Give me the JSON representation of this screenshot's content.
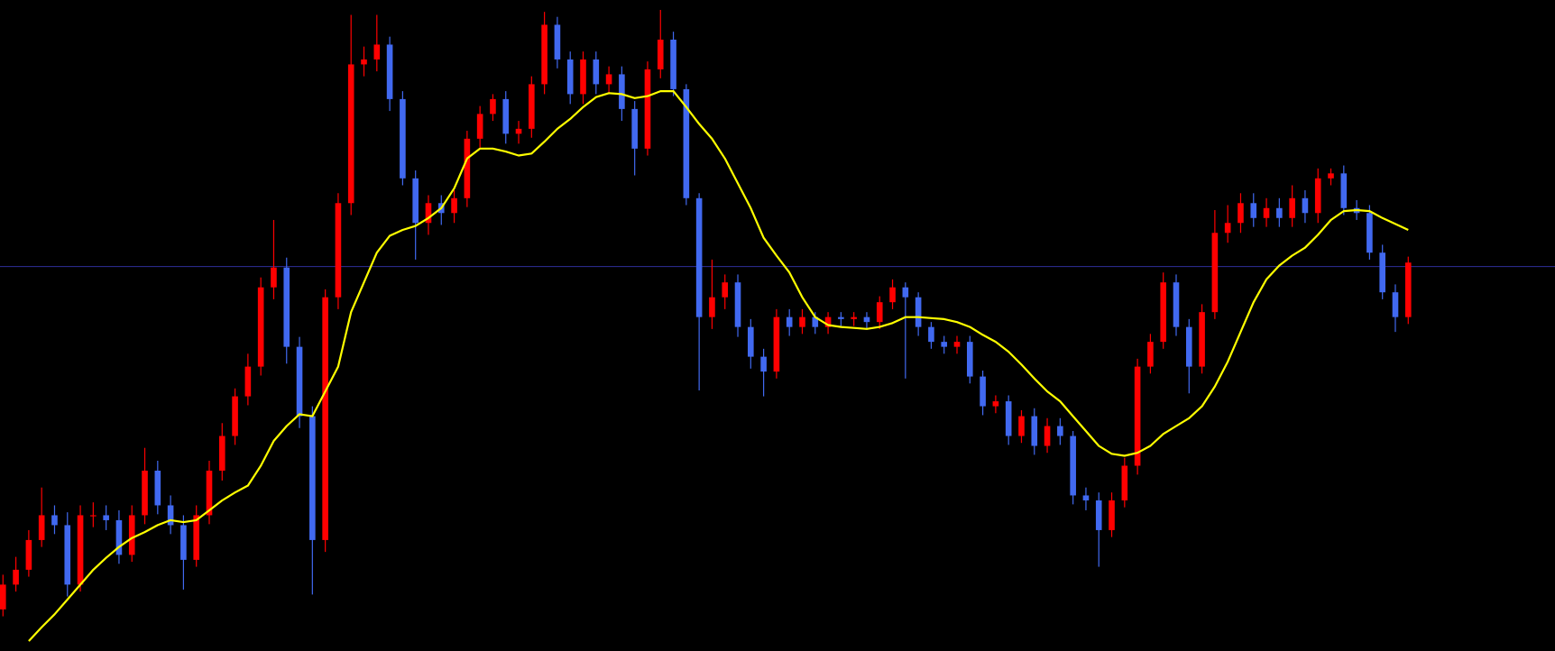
{
  "chart_data": {
    "type": "candlestick",
    "ylim": [
      0,
      657
    ],
    "up_color": "#ff0000",
    "down_color": "#4169f0",
    "open": [
      42,
      67,
      82,
      112,
      137,
      127,
      67,
      137,
      137,
      132,
      97,
      137,
      182,
      147,
      127,
      92,
      137,
      182,
      217,
      257,
      287,
      367,
      387,
      307,
      237,
      112,
      357,
      452,
      592,
      597,
      612,
      557,
      477,
      432,
      452,
      442,
      457,
      517,
      542,
      557,
      522,
      527,
      572,
      632,
      597,
      562,
      597,
      572,
      582,
      547,
      507,
      587,
      617,
      567,
      457,
      337,
      357,
      372,
      327,
      297,
      282,
      337,
      327,
      337,
      327,
      337,
      335,
      337,
      332,
      352,
      367,
      357,
      327,
      312,
      307,
      312,
      277,
      247,
      252,
      217,
      237,
      207,
      227,
      217,
      157,
      152,
      122,
      152,
      187,
      287,
      312,
      372,
      327,
      287,
      342,
      422,
      432,
      452,
      437,
      447,
      437,
      457,
      442,
      477,
      482,
      447,
      442,
      402,
      362,
      337
    ],
    "high": [
      77,
      95,
      122,
      165,
      147,
      140,
      147,
      150,
      147,
      142,
      147,
      205,
      192,
      157,
      137,
      147,
      192,
      230,
      265,
      300,
      377,
      435,
      397,
      317,
      247,
      365,
      462,
      642,
      610,
      642,
      620,
      565,
      485,
      460,
      460,
      465,
      525,
      550,
      562,
      565,
      535,
      580,
      645,
      640,
      605,
      605,
      605,
      590,
      590,
      555,
      595,
      647,
      625,
      572,
      462,
      395,
      380,
      380,
      335,
      305,
      345,
      345,
      345,
      342,
      342,
      342,
      342,
      342,
      358,
      375,
      372,
      362,
      332,
      318,
      318,
      318,
      283,
      258,
      258,
      243,
      245,
      235,
      235,
      222,
      165,
      160,
      160,
      195,
      295,
      320,
      382,
      380,
      335,
      350,
      445,
      450,
      462,
      462,
      457,
      457,
      470,
      465,
      487,
      487,
      490,
      455,
      450,
      410,
      370,
      398
    ],
    "low": [
      35,
      60,
      75,
      105,
      118,
      55,
      60,
      125,
      122,
      88,
      90,
      128,
      138,
      118,
      62,
      85,
      128,
      172,
      208,
      248,
      278,
      355,
      290,
      225,
      57,
      100,
      345,
      440,
      580,
      585,
      545,
      470,
      395,
      420,
      430,
      432,
      448,
      508,
      535,
      512,
      512,
      518,
      562,
      588,
      552,
      552,
      562,
      562,
      535,
      480,
      500,
      578,
      560,
      450,
      263,
      325,
      345,
      317,
      285,
      257,
      275,
      318,
      320,
      320,
      320,
      328,
      328,
      325,
      325,
      345,
      275,
      318,
      305,
      300,
      300,
      270,
      238,
      240,
      208,
      210,
      198,
      200,
      208,
      148,
      142,
      85,
      115,
      145,
      178,
      280,
      305,
      318,
      260,
      280,
      335,
      412,
      422,
      428,
      428,
      428,
      428,
      432,
      432,
      470,
      440,
      435,
      395,
      355,
      322,
      330
    ],
    "close": [
      67,
      82,
      112,
      137,
      127,
      67,
      137,
      137,
      132,
      97,
      137,
      182,
      147,
      127,
      92,
      137,
      182,
      217,
      257,
      287,
      367,
      387,
      307,
      237,
      112,
      357,
      452,
      592,
      597,
      612,
      557,
      477,
      432,
      452,
      442,
      457,
      517,
      542,
      557,
      522,
      527,
      572,
      632,
      597,
      562,
      597,
      572,
      582,
      547,
      507,
      587,
      617,
      567,
      457,
      337,
      357,
      372,
      327,
      297,
      282,
      337,
      327,
      337,
      327,
      337,
      335,
      337,
      332,
      352,
      367,
      357,
      327,
      312,
      307,
      312,
      277,
      247,
      252,
      217,
      237,
      207,
      227,
      217,
      157,
      152,
      122,
      152,
      187,
      287,
      312,
      372,
      327,
      287,
      342,
      422,
      432,
      452,
      437,
      447,
      437,
      457,
      442,
      477,
      482,
      447,
      442,
      402,
      362,
      337,
      392
    ],
    "ma": {
      "color": "#ffff00",
      "values": [
        null,
        null,
        10,
        24,
        37,
        52,
        67,
        82,
        94,
        105,
        114,
        120,
        127,
        132,
        130,
        132,
        142,
        152,
        160,
        167,
        187,
        212,
        227,
        239,
        237,
        262,
        287,
        342,
        372,
        402,
        419,
        425,
        429,
        437,
        447,
        467,
        497,
        507,
        507,
        504,
        500,
        502,
        514,
        527,
        537,
        549,
        559,
        563,
        562,
        558,
        560,
        565,
        565,
        549,
        532,
        517,
        497,
        472,
        447,
        417,
        399,
        382,
        357,
        337,
        329,
        327,
        326,
        325,
        327,
        331,
        337,
        337,
        336,
        335,
        332,
        327,
        319,
        312,
        302,
        289,
        275,
        262,
        252,
        237,
        222,
        207,
        199,
        197,
        200,
        207,
        219,
        227,
        235,
        247,
        267,
        292,
        322,
        352,
        375,
        389,
        399,
        407,
        420,
        435,
        444,
        445,
        444,
        437,
        431,
        425
      ]
    },
    "hline": {
      "value": 388,
      "color": "#2e2e9a"
    }
  }
}
